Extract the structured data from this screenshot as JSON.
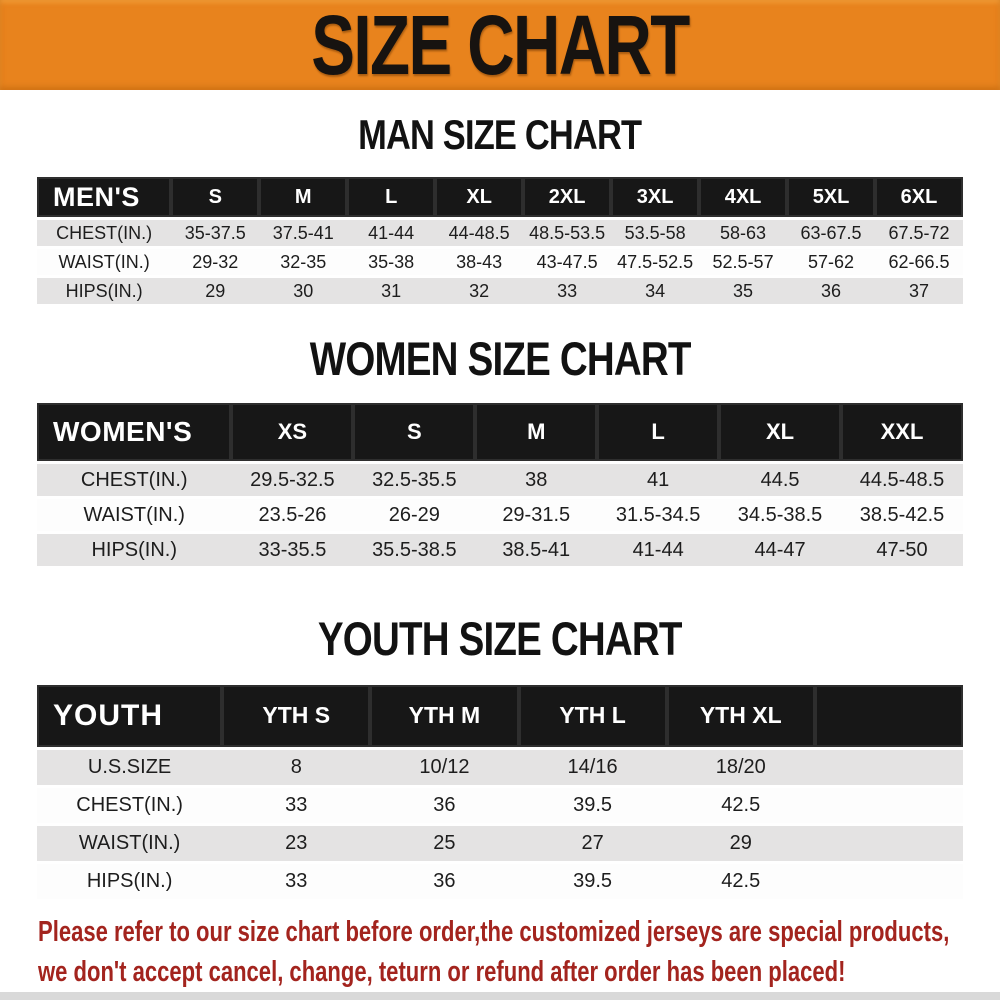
{
  "banner": {
    "title": "SIZE CHART",
    "bg_color": "#E8831D",
    "text_color": "#171310"
  },
  "sections": [
    {
      "id": "men",
      "heading": "MAN SIZE CHART",
      "table": {
        "header_label": "MEN'S",
        "columns": [
          "S",
          "M",
          "L",
          "XL",
          "2XL",
          "3XL",
          "4XL",
          "5XL",
          "6XL"
        ],
        "rows": [
          {
            "label": "CHEST(IN.)",
            "values": [
              "35-37.5",
              "37.5-41",
              "41-44",
              "44-48.5",
              "48.5-53.5",
              "53.5-58",
              "58-63",
              "63-67.5",
              "67.5-72"
            ]
          },
          {
            "label": "WAIST(IN.)",
            "values": [
              "29-32",
              "32-35",
              "35-38",
              "38-43",
              "43-47.5",
              "47.5-52.5",
              "52.5-57",
              "57-62",
              "62-66.5"
            ]
          },
          {
            "label": "HIPS(IN.)",
            "values": [
              "29",
              "30",
              "31",
              "32",
              "33",
              "34",
              "35",
              "36",
              "37"
            ]
          }
        ]
      }
    },
    {
      "id": "women",
      "heading": "WOMEN SIZE CHART",
      "table": {
        "header_label": "WOMEN'S",
        "columns": [
          "XS",
          "S",
          "M",
          "L",
          "XL",
          "XXL"
        ],
        "rows": [
          {
            "label": "CHEST(IN.)",
            "values": [
              "29.5-32.5",
              "32.5-35.5",
              "38",
              "41",
              "44.5",
              "44.5-48.5"
            ]
          },
          {
            "label": "WAIST(IN.)",
            "values": [
              "23.5-26",
              "26-29",
              "29-31.5",
              "31.5-34.5",
              "34.5-38.5",
              "38.5-42.5"
            ]
          },
          {
            "label": "HIPS(IN.)",
            "values": [
              "33-35.5",
              "35.5-38.5",
              "38.5-41",
              "41-44",
              "44-47",
              "47-50"
            ]
          }
        ]
      }
    },
    {
      "id": "youth",
      "heading": "YOUTH SIZE CHART",
      "table": {
        "header_label": "YOUTH",
        "columns": [
          "YTH S",
          "YTH M",
          "YTH L",
          "YTH XL"
        ],
        "rows": [
          {
            "label": "U.S.SIZE",
            "values": [
              "8",
              "10/12",
              "14/16",
              "18/20"
            ]
          },
          {
            "label": "CHEST(IN.)",
            "values": [
              "33",
              "36",
              "39.5",
              "42.5"
            ]
          },
          {
            "label": "WAIST(IN.)",
            "values": [
              "23",
              "25",
              "27",
              "29"
            ]
          },
          {
            "label": "HIPS(IN.)",
            "values": [
              "33",
              "36",
              "39.5",
              "42.5"
            ]
          }
        ]
      }
    }
  ],
  "disclaimer": {
    "line1": "Please refer to our size chart before order,the customized jerseys are special products,",
    "line2": "we don't accept cancel, change, teturn or refund after order has been placed!",
    "color": "#A3241E"
  }
}
